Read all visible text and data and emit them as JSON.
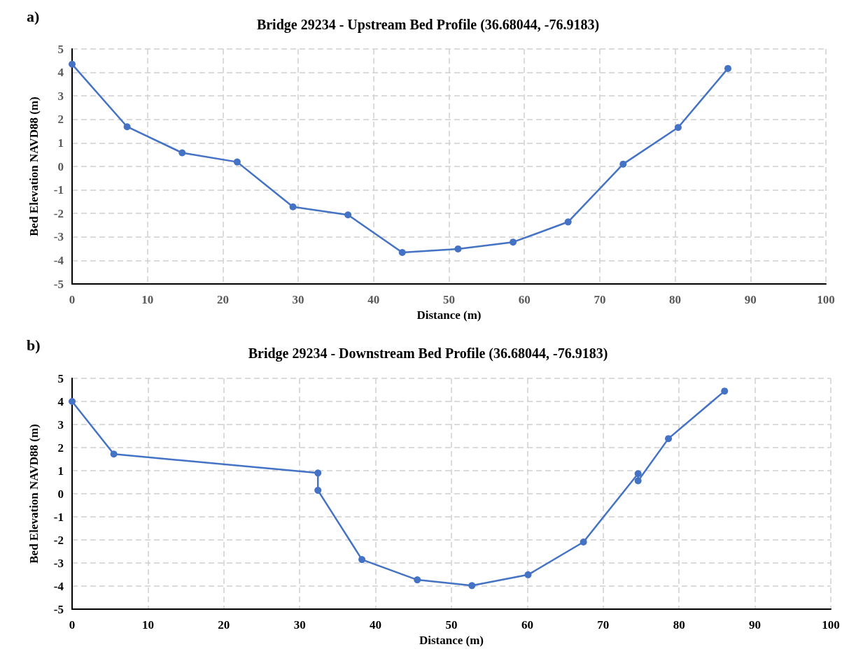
{
  "chart_data": [
    {
      "type": "line",
      "title": "Bridge 29234 - Upstream Bed Profile (36.68044, -76.9183)",
      "xlabel": "Distance (m)",
      "ylabel": "Bed Elevation NAVD88 (m)",
      "annotations": [
        "a)"
      ],
      "series": [
        {
          "color": "#4472c4",
          "x": [
            0,
            7.3,
            14.6,
            21.9,
            29.3,
            36.6,
            43.8,
            51.2,
            58.5,
            65.8,
            73.1,
            80.4,
            87.0
          ],
          "values": [
            4.35,
            1.69,
            0.58,
            0.19,
            -1.72,
            -2.06,
            -3.66,
            -3.51,
            -3.22,
            -2.36,
            0.1,
            1.66,
            4.17
          ]
        }
      ],
      "xlim": [
        0,
        100
      ],
      "xticks": [
        0,
        10,
        20,
        30,
        40,
        50,
        60,
        70,
        80,
        90,
        100
      ],
      "ylim": [
        -5,
        5
      ],
      "yticks": [
        -5,
        -4,
        -3,
        -2,
        -1,
        0,
        1,
        2,
        3,
        4,
        5
      ],
      "grid": true,
      "marker": "circle",
      "line_style": "solid"
    },
    {
      "type": "line",
      "title": "Bridge 29234 - Downstream Bed Profile (36.68044, -76.9183)",
      "xlabel": "Distance (m)",
      "ylabel": "Bed Elevation NAVD88 (m)",
      "annotations": [
        "b)"
      ],
      "series": [
        {
          "color": "#4472c4",
          "x": [
            0,
            5.5,
            32.4,
            32.4,
            38.2,
            45.5,
            52.7,
            60.1,
            67.4,
            74.6,
            74.6,
            78.6,
            86.0
          ],
          "values": [
            4.0,
            1.72,
            0.9,
            0.15,
            -2.85,
            -3.73,
            -3.98,
            -3.51,
            -2.09,
            0.87,
            0.56,
            2.39,
            4.45
          ]
        }
      ],
      "xlim": [
        0,
        100
      ],
      "xticks": [
        0,
        10,
        20,
        30,
        40,
        50,
        60,
        70,
        80,
        90,
        100
      ],
      "ylim": [
        -5,
        5
      ],
      "yticks": [
        -5,
        -4,
        -3,
        -2,
        -1,
        0,
        1,
        2,
        3,
        4,
        5
      ],
      "grid": true,
      "marker": "circle",
      "line_style": "solid"
    }
  ]
}
